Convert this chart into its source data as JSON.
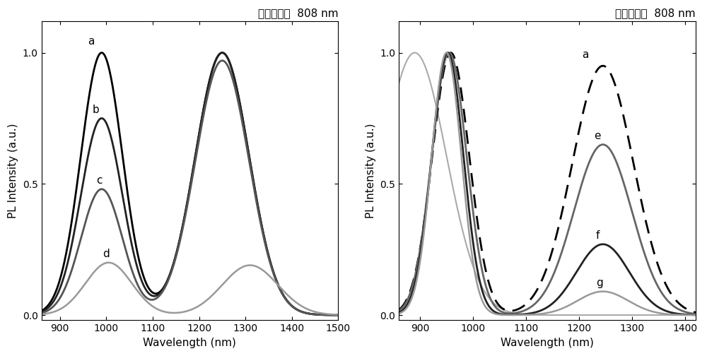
{
  "title_cn": "激发波长：  808 nm",
  "xlabel": "Wavelength (nm)",
  "ylabel": "PL Intensity (a.u.)",
  "left_xlim": [
    860,
    1500
  ],
  "left_ylim": [
    -0.02,
    1.12
  ],
  "left_xticks": [
    900,
    1000,
    1100,
    1200,
    1300,
    1400,
    1500
  ],
  "left_yticks": [
    0.0,
    0.5,
    1.0
  ],
  "left_yticklabels": [
    "0.0",
    "0.5",
    "1.0"
  ],
  "right_xlim": [
    860,
    1420
  ],
  "right_ylim": [
    -0.02,
    1.12
  ],
  "right_xticks": [
    900,
    1000,
    1100,
    1200,
    1300,
    1400
  ],
  "right_yticks": [
    0.0,
    0.5,
    1.0
  ],
  "right_yticklabels": [
    "0.0",
    "0.5",
    "1.0"
  ]
}
